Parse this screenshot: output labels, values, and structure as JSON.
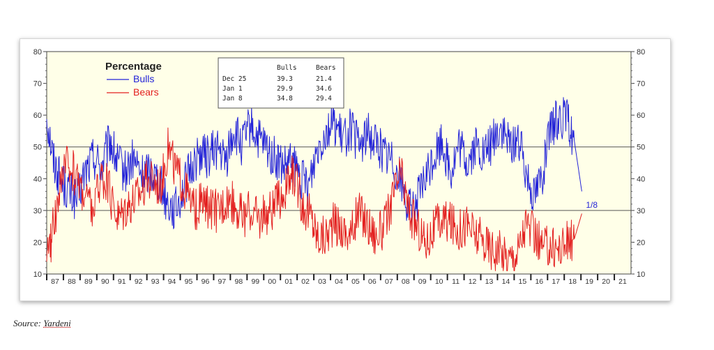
{
  "chart_data": {
    "type": "line",
    "title": "Percentage",
    "xlabel": "",
    "ylabel": "",
    "ylim": [
      10,
      80
    ],
    "y_ticks": [
      10,
      20,
      30,
      40,
      50,
      60,
      70,
      80
    ],
    "reference_lines": [
      30,
      50
    ],
    "x_range": [
      1987,
      2022
    ],
    "x_tick_labels": [
      "87",
      "88",
      "89",
      "90",
      "91",
      "92",
      "93",
      "94",
      "95",
      "96",
      "97",
      "98",
      "99",
      "00",
      "01",
      "02",
      "03",
      "04",
      "05",
      "06",
      "07",
      "08",
      "09",
      "10",
      "11",
      "12",
      "13",
      "14",
      "15",
      "16",
      "17",
      "18",
      "19",
      "20",
      "21"
    ],
    "grid": false,
    "legend_position": "top-left",
    "annotation": "1/8",
    "series": [
      {
        "name": "Bulls",
        "color": "#2323d8",
        "x": [
          1987.0,
          1987.4,
          1987.8,
          1988.3,
          1988.8,
          1989.3,
          1989.8,
          1990.3,
          1990.8,
          1991.2,
          1991.7,
          1992.2,
          1992.7,
          1993.2,
          1993.7,
          1994.2,
          1994.7,
          1995.2,
          1995.7,
          1996.2,
          1996.7,
          1997.2,
          1997.7,
          1998.2,
          1998.7,
          1999.2,
          1999.7,
          2000.2,
          2000.7,
          2001.2,
          2001.7,
          2002.2,
          2002.7,
          2003.2,
          2003.7,
          2004.2,
          2004.7,
          2005.2,
          2005.7,
          2006.2,
          2006.7,
          2007.2,
          2007.7,
          2008.2,
          2008.7,
          2009.2,
          2009.7,
          2010.2,
          2010.7,
          2011.2,
          2011.7,
          2012.2,
          2012.7,
          2013.2,
          2013.7,
          2014.2,
          2014.7,
          2015.2,
          2015.7,
          2016.2,
          2016.7,
          2017.2,
          2017.7,
          2018.2,
          2018.6,
          2019.05
        ],
        "values": [
          60,
          46,
          40,
          36,
          33,
          42,
          47,
          44,
          52,
          45,
          42,
          46,
          41,
          43,
          40,
          33,
          30,
          37,
          44,
          48,
          47,
          50,
          45,
          55,
          50,
          57,
          52,
          49,
          46,
          43,
          45,
          40,
          38,
          50,
          55,
          58,
          52,
          56,
          50,
          54,
          52,
          48,
          46,
          40,
          30,
          33,
          40,
          47,
          52,
          42,
          50,
          45,
          50,
          47,
          52,
          56,
          50,
          53,
          43,
          35,
          42,
          55,
          60,
          58,
          52,
          36
        ]
      },
      {
        "name": "Bears",
        "color": "#e32020",
        "x": [
          1987.0,
          1987.3,
          1987.8,
          1988.3,
          1988.8,
          1989.3,
          1989.8,
          1990.3,
          1990.8,
          1991.3,
          1991.8,
          1992.3,
          1992.8,
          1993.3,
          1993.8,
          1994.3,
          1994.8,
          1995.3,
          1995.8,
          1996.3,
          1996.8,
          1997.3,
          1997.8,
          1998.3,
          1998.8,
          1999.3,
          1999.8,
          2000.3,
          2000.8,
          2001.3,
          2001.8,
          2002.3,
          2002.8,
          2003.2,
          2003.7,
          2004.2,
          2004.7,
          2005.2,
          2005.7,
          2006.2,
          2006.7,
          2007.2,
          2007.7,
          2008.2,
          2008.7,
          2009.2,
          2009.7,
          2010.2,
          2010.7,
          2011.2,
          2011.7,
          2012.2,
          2012.7,
          2013.2,
          2013.7,
          2014.2,
          2014.7,
          2015.2,
          2015.7,
          2016.2,
          2016.7,
          2017.2,
          2017.7,
          2018.2,
          2018.6,
          2019.05
        ],
        "values": [
          13,
          22,
          38,
          45,
          40,
          35,
          30,
          42,
          35,
          28,
          32,
          34,
          38,
          40,
          38,
          50,
          42,
          36,
          30,
          32,
          30,
          30,
          34,
          32,
          28,
          30,
          27,
          30,
          32,
          36,
          42,
          32,
          29,
          22,
          22,
          26,
          24,
          22,
          30,
          26,
          22,
          24,
          34,
          42,
          30,
          25,
          20,
          24,
          27,
          26,
          24,
          26,
          22,
          20,
          18,
          17,
          15,
          17,
          26,
          22,
          18,
          19,
          18,
          20,
          21,
          29
        ]
      }
    ],
    "table": {
      "headers": [
        "",
        "Bulls",
        "Bears"
      ],
      "rows": [
        [
          "Dec 25",
          "39.3",
          "21.4"
        ],
        [
          "Jan  1",
          "29.9",
          "34.6"
        ],
        [
          "Jan  8",
          "34.8",
          "29.4"
        ]
      ]
    }
  },
  "source": {
    "prefix": "Source: ",
    "name": "Yardeni"
  }
}
